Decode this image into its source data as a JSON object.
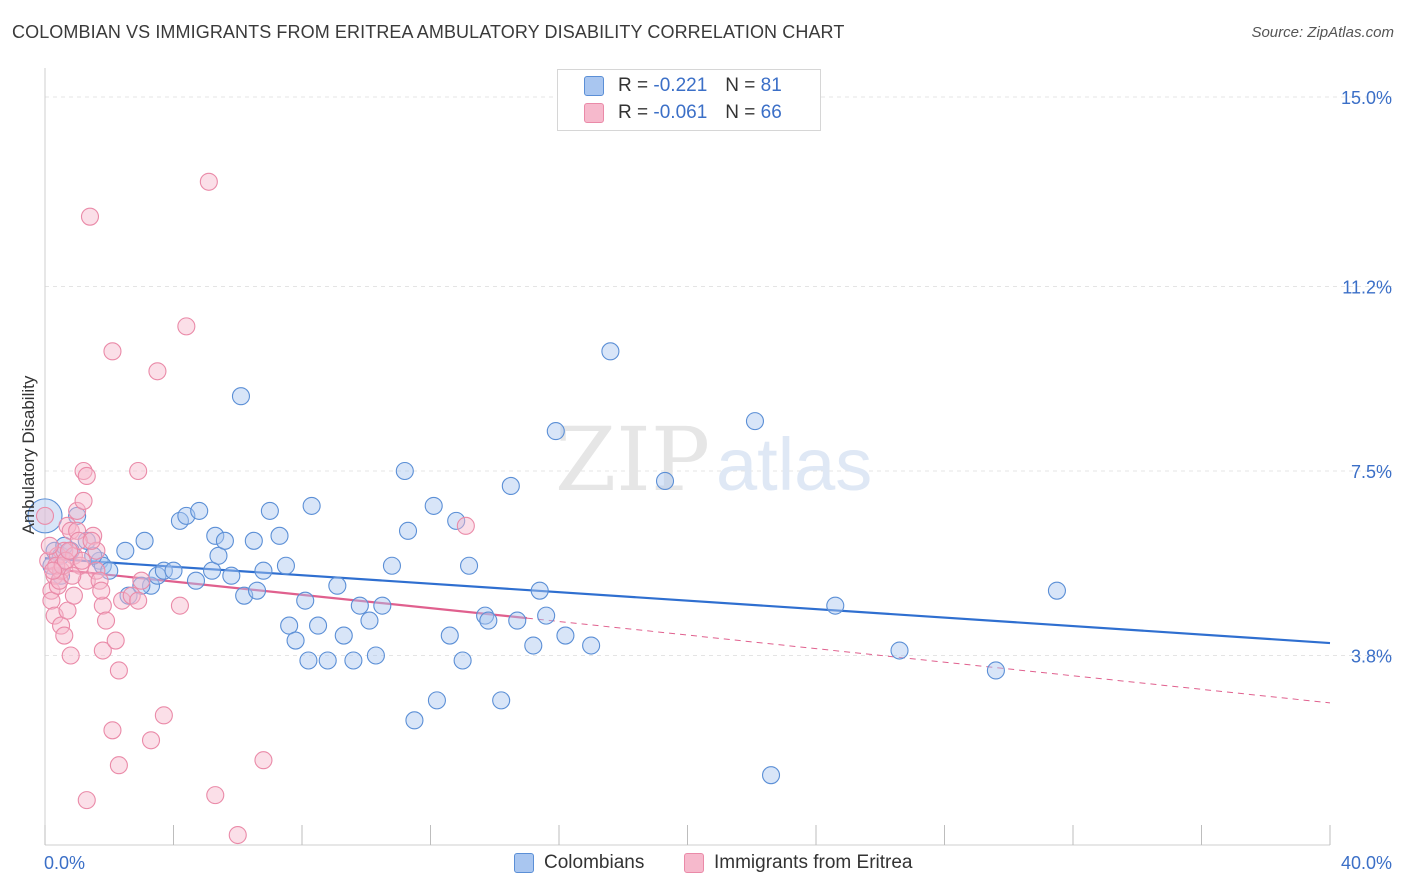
{
  "header": {
    "title": "COLOMBIAN VS IMMIGRANTS FROM ERITREA AMBULATORY DISABILITY CORRELATION CHART",
    "source": "Source: ZipAtlas.com"
  },
  "watermark": {
    "zip": "ZIP",
    "atlas": "atlas"
  },
  "legend": {
    "rows": [
      {
        "r_label": "R =",
        "r_value": "-0.221",
        "n_label": "N =",
        "n_value": "81"
      },
      {
        "r_label": "R =",
        "r_value": "-0.061",
        "n_label": "N =",
        "n_value": "66"
      }
    ]
  },
  "colors": {
    "blue_fill": "#a9c6f0",
    "blue_stroke": "#5b8fd6",
    "blue_line": "#2f6fd0",
    "pink_fill": "#f6b9cc",
    "pink_stroke": "#ea8aa8",
    "pink_line": "#e0608e",
    "accent_text": "#3b6fc7",
    "grid": "#e4e4e4"
  },
  "chart_data": {
    "type": "scatter",
    "title": "COLOMBIAN VS IMMIGRANTS FROM ERITREA AMBULATORY DISABILITY CORRELATION CHART",
    "xlabel": "",
    "ylabel": "Ambulatory Disability",
    "xlim": [
      0,
      40
    ],
    "ylim": [
      0,
      15.0
    ],
    "x_tick_labels": [
      "0.0%",
      "40.0%"
    ],
    "y_ticks": [
      3.8,
      7.5,
      11.2,
      15.0
    ],
    "y_tick_labels": [
      "3.8%",
      "7.5%",
      "11.2%",
      "15.0%"
    ],
    "grid": true,
    "legend_position": "top-center",
    "series": [
      {
        "name": "Colombians",
        "color": "#5b8fd6",
        "trend": {
          "x": [
            0,
            40
          ],
          "y": [
            5.75,
            4.05
          ]
        },
        "points": [
          [
            0.0,
            6.6
          ],
          [
            0.3,
            5.9
          ],
          [
            0.5,
            5.4
          ],
          [
            0.5,
            5.8
          ],
          [
            0.8,
            5.9
          ],
          [
            1.0,
            6.6
          ],
          [
            1.3,
            6.1
          ],
          [
            1.7,
            5.7
          ],
          [
            1.8,
            5.6
          ],
          [
            2.5,
            5.9
          ],
          [
            2.6,
            5.0
          ],
          [
            3.1,
            6.1
          ],
          [
            3.3,
            5.2
          ],
          [
            3.5,
            5.4
          ],
          [
            3.7,
            5.5
          ],
          [
            4.0,
            5.5
          ],
          [
            4.2,
            6.5
          ],
          [
            4.4,
            6.6
          ],
          [
            4.7,
            5.3
          ],
          [
            4.8,
            6.7
          ],
          [
            5.2,
            5.5
          ],
          [
            5.3,
            6.2
          ],
          [
            5.4,
            5.8
          ],
          [
            5.6,
            6.1
          ],
          [
            5.8,
            5.4
          ],
          [
            6.1,
            9.0
          ],
          [
            6.2,
            5.0
          ],
          [
            6.5,
            6.1
          ],
          [
            6.6,
            5.1
          ],
          [
            6.8,
            5.5
          ],
          [
            7.0,
            6.7
          ],
          [
            7.3,
            6.2
          ],
          [
            7.5,
            5.6
          ],
          [
            7.6,
            4.4
          ],
          [
            7.8,
            4.1
          ],
          [
            8.1,
            4.9
          ],
          [
            8.2,
            3.7
          ],
          [
            8.3,
            6.8
          ],
          [
            8.5,
            4.4
          ],
          [
            8.8,
            3.7
          ],
          [
            9.1,
            5.2
          ],
          [
            9.3,
            4.2
          ],
          [
            9.6,
            3.7
          ],
          [
            9.8,
            4.8
          ],
          [
            10.1,
            4.5
          ],
          [
            10.3,
            3.8
          ],
          [
            10.5,
            4.8
          ],
          [
            10.8,
            5.6
          ],
          [
            11.2,
            7.5
          ],
          [
            11.3,
            6.3
          ],
          [
            11.5,
            2.5
          ],
          [
            12.1,
            6.8
          ],
          [
            12.2,
            2.9
          ],
          [
            12.6,
            4.2
          ],
          [
            12.8,
            6.5
          ],
          [
            13.0,
            3.7
          ],
          [
            13.2,
            5.6
          ],
          [
            13.7,
            4.6
          ],
          [
            13.8,
            4.5
          ],
          [
            14.2,
            2.9
          ],
          [
            14.5,
            7.2
          ],
          [
            14.7,
            4.5
          ],
          [
            15.2,
            4.0
          ],
          [
            15.4,
            5.1
          ],
          [
            15.6,
            4.6
          ],
          [
            15.9,
            8.3
          ],
          [
            16.2,
            4.2
          ],
          [
            17.0,
            4.0
          ],
          [
            17.6,
            9.9
          ],
          [
            19.3,
            7.3
          ],
          [
            22.1,
            8.5
          ],
          [
            22.6,
            1.4
          ],
          [
            24.6,
            4.8
          ],
          [
            26.6,
            3.9
          ],
          [
            29.6,
            3.5
          ],
          [
            31.5,
            5.1
          ],
          [
            0.2,
            5.6
          ],
          [
            0.6,
            6.0
          ],
          [
            1.5,
            5.8
          ],
          [
            2.0,
            5.5
          ],
          [
            3.0,
            5.2
          ]
        ]
      },
      {
        "name": "Immigrants from Eritrea",
        "color": "#ea8aa8",
        "trend": {
          "x": [
            0,
            15
          ],
          "y": [
            5.55,
            4.55
          ]
        },
        "trend_extension": {
          "x": [
            15,
            40
          ],
          "y": [
            4.55,
            2.85
          ]
        },
        "points": [
          [
            0.0,
            6.6
          ],
          [
            0.1,
            5.7
          ],
          [
            0.2,
            5.1
          ],
          [
            0.2,
            4.9
          ],
          [
            0.3,
            4.6
          ],
          [
            0.3,
            5.4
          ],
          [
            0.4,
            5.8
          ],
          [
            0.4,
            5.2
          ],
          [
            0.5,
            5.5
          ],
          [
            0.5,
            4.4
          ],
          [
            0.6,
            5.9
          ],
          [
            0.6,
            4.2
          ],
          [
            0.7,
            4.7
          ],
          [
            0.7,
            6.4
          ],
          [
            0.8,
            6.3
          ],
          [
            0.8,
            3.8
          ],
          [
            0.9,
            5.8
          ],
          [
            0.9,
            5.0
          ],
          [
            1.0,
            6.7
          ],
          [
            1.0,
            6.3
          ],
          [
            1.1,
            5.6
          ],
          [
            1.2,
            7.5
          ],
          [
            1.2,
            6.9
          ],
          [
            1.3,
            7.4
          ],
          [
            1.3,
            5.3
          ],
          [
            1.3,
            0.9
          ],
          [
            1.4,
            12.6
          ],
          [
            1.5,
            6.2
          ],
          [
            1.6,
            5.5
          ],
          [
            1.6,
            5.9
          ],
          [
            1.7,
            5.3
          ],
          [
            1.8,
            3.9
          ],
          [
            1.8,
            4.8
          ],
          [
            1.9,
            4.5
          ],
          [
            2.1,
            2.3
          ],
          [
            2.1,
            9.9
          ],
          [
            2.2,
            4.1
          ],
          [
            2.3,
            1.6
          ],
          [
            2.3,
            3.5
          ],
          [
            2.4,
            4.9
          ],
          [
            2.7,
            5.0
          ],
          [
            2.9,
            4.9
          ],
          [
            2.9,
            7.5
          ],
          [
            3.0,
            5.3
          ],
          [
            3.3,
            2.1
          ],
          [
            3.5,
            9.5
          ],
          [
            3.7,
            2.6
          ],
          [
            4.2,
            4.8
          ],
          [
            4.4,
            10.4
          ],
          [
            5.1,
            13.3
          ],
          [
            5.3,
            1.0
          ],
          [
            6.0,
            0.2
          ],
          [
            6.8,
            1.7
          ],
          [
            13.1,
            6.4
          ],
          [
            0.15,
            6.0
          ],
          [
            0.35,
            5.6
          ],
          [
            0.45,
            5.3
          ],
          [
            0.55,
            5.6
          ],
          [
            0.65,
            5.7
          ],
          [
            0.85,
            5.4
          ],
          [
            1.05,
            6.1
          ],
          [
            1.15,
            5.7
          ],
          [
            1.45,
            6.1
          ],
          [
            1.75,
            5.1
          ],
          [
            0.25,
            5.5
          ],
          [
            0.75,
            5.9
          ]
        ]
      }
    ]
  },
  "bottom_legend": {
    "items": [
      {
        "label": "Colombians"
      },
      {
        "label": "Immigrants from Eritrea"
      }
    ]
  }
}
